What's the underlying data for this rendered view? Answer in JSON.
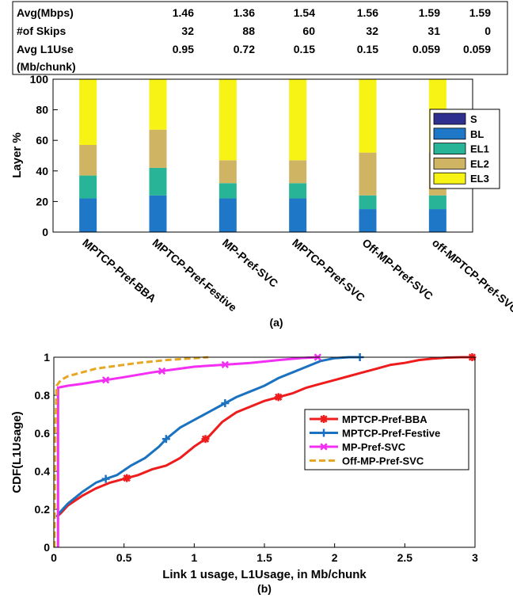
{
  "stats_table": {
    "row_labels": [
      "Avg(Mbps)",
      "#of Skips",
      "Avg L1Use",
      "(Mb/chunk)"
    ],
    "rows": [
      [
        "1.46",
        "1.36",
        "1.54",
        "1.56",
        "1.59",
        "1.59"
      ],
      [
        "32",
        "88",
        "60",
        "32",
        "31",
        "0"
      ],
      [
        "0.95",
        "0.72",
        "0.15",
        "0.15",
        "0.059",
        "0.059"
      ]
    ]
  },
  "chart_data": [
    {
      "type": "bar",
      "stacked": true,
      "caption": "(a)",
      "ylabel": "Layer %",
      "ylim": [
        0,
        100
      ],
      "yticks": [
        0,
        20,
        40,
        60,
        80,
        100
      ],
      "categories": [
        "MPTCP-Pref-BBA",
        "MPTCP-Pref-Festive",
        "MP-Pref-SVC",
        "MPTCP-Pref-SVC",
        "Off-MP-Pref-SVC",
        "off-MPTCP-Pref-SVC"
      ],
      "legend_position": "right",
      "series": [
        {
          "name": "S",
          "color": "#2e2f8f",
          "values": [
            0,
            0,
            0,
            0,
            0,
            0
          ]
        },
        {
          "name": "BL",
          "color": "#1f77c8",
          "values": [
            22,
            24,
            22,
            22,
            15,
            15
          ]
        },
        {
          "name": "EL1",
          "color": "#27b497",
          "values": [
            15,
            18,
            10,
            10,
            9,
            9
          ]
        },
        {
          "name": "EL2",
          "color": "#cfb464",
          "values": [
            20,
            25,
            15,
            15,
            28,
            28
          ]
        },
        {
          "name": "EL3",
          "color": "#f7f314",
          "values": [
            43,
            33,
            53,
            53,
            48,
            48
          ]
        }
      ]
    },
    {
      "type": "line",
      "caption": "(b)",
      "xlabel": "Link 1 usage, L1Usage, in Mb/chunk",
      "ylabel": "CDF(L1Usage)",
      "xlim": [
        0,
        3
      ],
      "ylim": [
        0,
        1
      ],
      "xticks": [
        "0",
        "0.5",
        "1",
        "1.5",
        "2",
        "2.5",
        "3"
      ],
      "yticks": [
        "0",
        "0.2",
        "0.4",
        "0.6",
        "0.8",
        "1"
      ],
      "legend_position": "right",
      "series": [
        {
          "name": "MPTCP-Pref-BBA",
          "color": "#ee1c1c",
          "dash": "",
          "marker": "asterisk",
          "x": [
            0.02,
            0.05,
            0.1,
            0.2,
            0.3,
            0.4,
            0.5,
            0.6,
            0.7,
            0.8,
            0.9,
            1.0,
            1.1,
            1.2,
            1.3,
            1.4,
            1.5,
            1.6,
            1.7,
            1.8,
            1.9,
            2.0,
            2.1,
            2.2,
            2.3,
            2.4,
            2.5,
            2.6,
            2.7,
            2.8,
            2.9,
            2.98
          ],
          "y": [
            0.16,
            0.18,
            0.22,
            0.27,
            0.31,
            0.34,
            0.36,
            0.38,
            0.41,
            0.43,
            0.47,
            0.53,
            0.58,
            0.66,
            0.71,
            0.74,
            0.77,
            0.79,
            0.81,
            0.84,
            0.86,
            0.88,
            0.9,
            0.92,
            0.94,
            0.96,
            0.97,
            0.985,
            0.993,
            0.998,
            1.0,
            1.0
          ],
          "markers_x": [
            0.52,
            1.08,
            1.6,
            2.98
          ]
        },
        {
          "name": "MPTCP-Pref-Festive",
          "color": "#1a72c0",
          "dash": "",
          "marker": "plus",
          "x": [
            0.02,
            0.05,
            0.1,
            0.2,
            0.3,
            0.37,
            0.45,
            0.55,
            0.65,
            0.75,
            0.8,
            0.9,
            1.0,
            1.1,
            1.2,
            1.3,
            1.4,
            1.5,
            1.6,
            1.7,
            1.8,
            1.9,
            2.0,
            2.1,
            2.18
          ],
          "y": [
            0.16,
            0.19,
            0.23,
            0.29,
            0.34,
            0.36,
            0.38,
            0.43,
            0.47,
            0.53,
            0.57,
            0.63,
            0.67,
            0.71,
            0.75,
            0.79,
            0.82,
            0.85,
            0.89,
            0.92,
            0.95,
            0.98,
            0.995,
            1.0,
            1.0
          ],
          "markers_x": [
            0.37,
            0.8,
            1.22,
            2.18
          ]
        },
        {
          "name": "MP-Pref-SVC",
          "color": "#f22ff2",
          "dash": "",
          "marker": "x",
          "x": [
            0.03,
            0.03,
            0.03,
            0.1,
            0.2,
            0.37,
            0.5,
            0.7,
            0.9,
            1.0,
            1.2,
            1.4,
            1.6,
            1.75,
            1.88
          ],
          "y": [
            0.0,
            0.55,
            0.84,
            0.85,
            0.86,
            0.88,
            0.895,
            0.92,
            0.94,
            0.95,
            0.96,
            0.97,
            0.985,
            0.995,
            1.0
          ],
          "markers_x": [
            0.37,
            0.77,
            1.22,
            1.88
          ]
        },
        {
          "name": "Off-MP-Pref-SVC",
          "color": "#e8a723",
          "dash": "8,4",
          "marker": "none",
          "x": [
            0.005,
            0.01,
            0.02,
            0.05,
            0.1,
            0.2,
            0.3,
            0.4,
            0.5,
            0.6,
            0.8,
            1.0,
            1.1
          ],
          "y": [
            0.0,
            0.6,
            0.85,
            0.88,
            0.9,
            0.92,
            0.94,
            0.95,
            0.96,
            0.97,
            0.985,
            0.995,
            1.0
          ],
          "markers_x": []
        }
      ]
    }
  ]
}
